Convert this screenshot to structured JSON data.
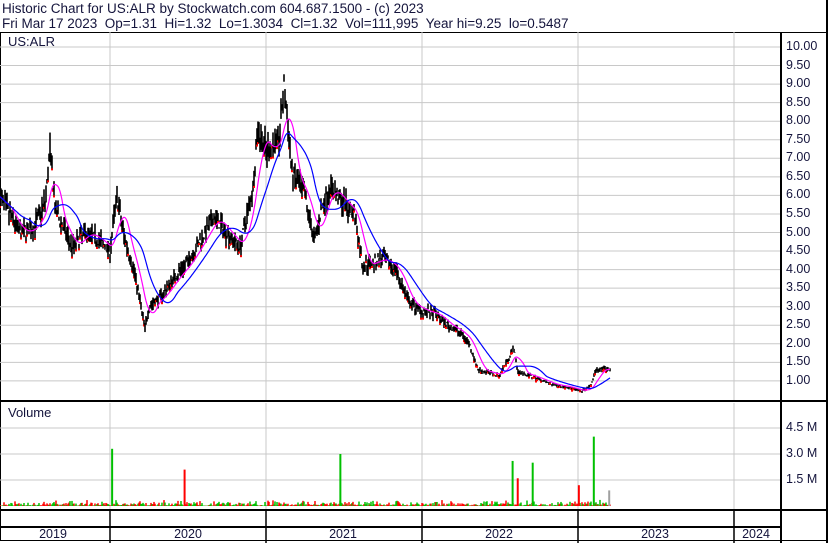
{
  "header": {
    "title": "Historic Chart for US:ALR by Stockwatch.com 604.687.1500 - (c) 2023",
    "quote": "Fri Mar 17 2023  Op=1.31  Hi=1.32  Lo=1.3034  Cl=1.32  Vol=111,995  Year hi=9.25  lo=0.5487"
  },
  "price_panel": {
    "label": "US:ALR"
  },
  "volume_panel": {
    "label": "Volume"
  },
  "colors": {
    "price": "#000000",
    "down_tick": "#ff0000",
    "ma_short": "#ff00ff",
    "ma_long": "#0000ff",
    "vol_up": "#00c000",
    "vol_down": "#ff0000",
    "vol_flat": "#a0a0a0",
    "grid": "#c8c8c8"
  },
  "chart_data": [
    {
      "type": "line",
      "title": "US:ALR",
      "ylim": [
        0.5,
        10.4
      ],
      "y_ticks": [
        "10.00",
        "9.50",
        "9.00",
        "8.50",
        "8.00",
        "7.50",
        "7.00",
        "6.50",
        "6.00",
        "5.50",
        "5.00",
        "4.50",
        "4.00",
        "3.50",
        "3.00",
        "2.50",
        "2.00",
        "1.50",
        "1.00"
      ],
      "x_ticks": [
        "2019",
        "2020",
        "2021",
        "2022",
        "2023",
        "2024"
      ],
      "grid": true,
      "series": [
        {
          "dates": [
            "2019-04-17",
            "2019-05-06",
            "2019-06-04",
            "2019-07-05",
            "2019-08-02",
            "2019-08-14",
            "2019-08-26",
            "2019-09-07",
            "2019-10-05",
            "2019-11-05",
            "2019-12-05",
            "2020-01-01",
            "2020-01-17",
            "2020-02-01",
            "2020-03-01",
            "2020-03-23",
            "2020-04-01",
            "2020-05-01",
            "2020-06-01",
            "2020-07-01",
            "2020-08-01",
            "2020-09-01",
            "2020-10-01",
            "2020-11-01",
            "2020-12-01",
            "2020-12-13",
            "2021-01-01",
            "2021-02-01",
            "2021-02-12",
            "2021-03-03",
            "2021-04-01",
            "2021-04-24",
            "2021-05-15",
            "2021-06-01",
            "2021-07-01",
            "2021-07-27",
            "2021-08-15",
            "2021-10-01",
            "2021-11-01",
            "2021-12-01",
            "2022-01-01",
            "2022-02-01",
            "2022-03-01",
            "2022-04-01",
            "2022-04-22",
            "2022-05-12",
            "2022-07-01",
            "2022-08-04",
            "2022-08-13",
            "2022-10-01",
            "2022-11-01",
            "2022-12-01",
            "2023-01-08",
            "2023-01-30",
            "2023-02-12",
            "2023-03-17"
          ],
          "values": [
            6.0,
            5.6,
            5.0,
            5.1,
            5.8,
            7.2,
            5.6,
            5.3,
            4.6,
            5.0,
            4.8,
            4.5,
            6.0,
            5.0,
            3.8,
            2.4,
            3.0,
            3.3,
            3.8,
            4.2,
            4.8,
            5.4,
            5.0,
            4.6,
            6.2,
            7.8,
            7.2,
            7.5,
            9.0,
            6.6,
            6.0,
            4.8,
            5.8,
            6.2,
            5.8,
            5.5,
            4.1,
            4.3,
            4.0,
            3.1,
            2.9,
            2.8,
            2.5,
            2.3,
            2.0,
            1.3,
            1.15,
            1.9,
            1.25,
            1.05,
            0.9,
            0.85,
            0.72,
            0.85,
            1.3,
            1.32
          ]
        }
      ]
    },
    {
      "type": "bar",
      "title": "Volume",
      "y_ticks": [
        "4.5 M",
        "3.0 M",
        "1.5 M"
      ],
      "ylim": [
        0,
        5000000
      ],
      "notable_bars": [
        {
          "date": "2020-01-06",
          "value": 3300000,
          "direction": "up"
        },
        {
          "date": "2020-06-24",
          "value": 2100000,
          "direction": "down"
        },
        {
          "date": "2021-06-24",
          "value": 3000000,
          "direction": "up"
        },
        {
          "date": "2022-08-01",
          "value": 2600000,
          "direction": "up"
        },
        {
          "date": "2022-08-13",
          "value": 1600000,
          "direction": "down"
        },
        {
          "date": "2022-09-17",
          "value": 2500000,
          "direction": "up"
        },
        {
          "date": "2023-01-03",
          "value": 1200000,
          "direction": "down"
        },
        {
          "date": "2023-02-07",
          "value": 4000000,
          "direction": "up"
        },
        {
          "date": "2023-03-15",
          "value": 900000,
          "direction": "flat"
        }
      ]
    }
  ]
}
